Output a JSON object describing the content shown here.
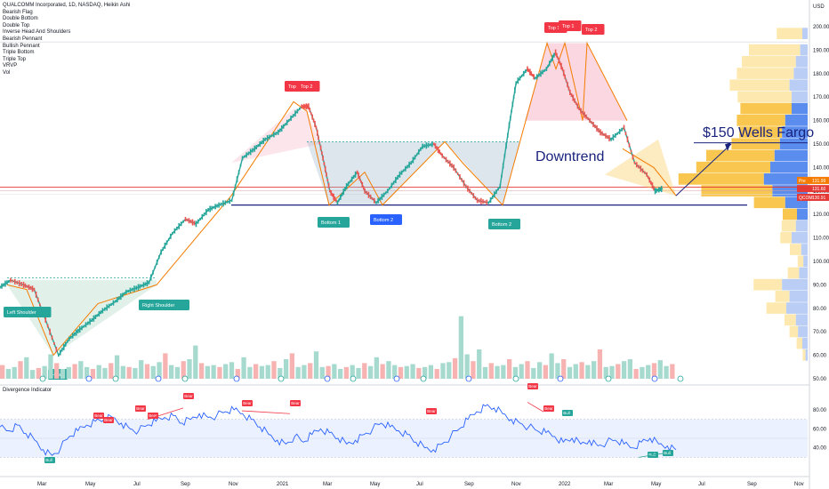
{
  "header": {
    "title": "QUALCOMM Incorporated, 1D, NASDAQ, Heikin Ashi",
    "legend_items": [
      "Bearish Flag",
      "Double Bottom",
      "Double Top",
      "Inverse Head And Shoulders",
      "Bearish Pennant",
      "Bullish Pennant",
      "Triple Bottom",
      "Triple Top",
      "VRVP",
      "Vol"
    ]
  },
  "indicator": {
    "title": "Divergence Indicator"
  },
  "price_axis": {
    "currency": "USD"
  },
  "annotations": {
    "downtrend": "Downtrend",
    "wells_fargo": "$150 Wells Fargo"
  },
  "pattern_labels": [
    {
      "text": "Left Shoulder",
      "kind": "green"
    },
    {
      "text": "Head",
      "kind": "green"
    },
    {
      "text": "Right Shoulder",
      "kind": "green"
    },
    {
      "text": "Top",
      "kind": "red"
    },
    {
      "text": "Top 2",
      "kind": "red"
    },
    {
      "text": "Bottom 1",
      "kind": "green"
    },
    {
      "text": "Bottom 2",
      "kind": "blue"
    },
    {
      "text": "Bottom 2",
      "kind": "green"
    },
    {
      "text": "Top 1",
      "kind": "red"
    },
    {
      "text": "Top 1",
      "kind": "red"
    },
    {
      "text": "Top 2",
      "kind": "red"
    }
  ],
  "price_badges": [
    {
      "label": "Pre",
      "value": "131.99",
      "color": "#f57c00"
    },
    {
      "label": "",
      "value": "131.60",
      "color": "#e53935"
    },
    {
      "label": "QCOM",
      "value": "130.91",
      "color": "#e53935"
    }
  ],
  "divergence_labels": [
    "Bull",
    "Bear",
    "Bear",
    "Bear",
    "Bear",
    "Bear",
    "Bear",
    "Bear",
    "Bear",
    "Bear",
    "Bear",
    "Bull",
    "Bull",
    "Bull"
  ],
  "chart_data": {
    "type": "line",
    "title": "QUALCOMM Incorporated, 1D, NASDAQ, Heikin Ashi",
    "y_ticks": [
      200,
      190,
      180,
      170,
      160,
      150,
      140,
      130,
      120,
      110,
      100,
      90,
      80,
      70,
      60,
      50
    ],
    "ylim": [
      48,
      203
    ],
    "x_ticks": [
      "Mar",
      "May",
      "Jul",
      "Sep",
      "Nov",
      "2021",
      "Mar",
      "May",
      "Jul",
      "Sep",
      "Nov",
      "2022",
      "Mar",
      "May",
      "Jul",
      "Sep",
      "Nov"
    ],
    "price_points": [
      [
        "2020-01-01",
        89
      ],
      [
        "2020-01-15",
        92
      ],
      [
        "2020-02-01",
        90
      ],
      [
        "2020-02-15",
        88
      ],
      [
        "2020-03-01",
        75
      ],
      [
        "2020-03-18",
        60
      ],
      [
        "2020-04-01",
        67
      ],
      [
        "2020-04-15",
        71
      ],
      [
        "2020-05-01",
        75
      ],
      [
        "2020-05-15",
        79
      ],
      [
        "2020-06-01",
        83
      ],
      [
        "2020-06-15",
        87
      ],
      [
        "2020-07-01",
        89
      ],
      [
        "2020-07-15",
        91
      ],
      [
        "2020-07-31",
        104
      ],
      [
        "2020-08-15",
        112
      ],
      [
        "2020-09-01",
        118
      ],
      [
        "2020-09-15",
        116
      ],
      [
        "2020-10-01",
        122
      ],
      [
        "2020-10-15",
        124
      ],
      [
        "2020-11-01",
        126
      ],
      [
        "2020-11-15",
        144
      ],
      [
        "2020-12-01",
        148
      ],
      [
        "2020-12-15",
        152
      ],
      [
        "2021-01-01",
        155
      ],
      [
        "2021-01-15",
        160
      ],
      [
        "2021-02-01",
        166
      ],
      [
        "2021-02-10",
        166
      ],
      [
        "2021-02-20",
        157
      ],
      [
        "2021-03-01",
        144
      ],
      [
        "2021-03-10",
        130
      ],
      [
        "2021-03-20",
        125
      ],
      [
        "2021-04-01",
        132
      ],
      [
        "2021-04-15",
        138
      ],
      [
        "2021-04-25",
        130
      ],
      [
        "2021-05-10",
        125
      ],
      [
        "2021-05-25",
        130
      ],
      [
        "2021-06-10",
        137
      ],
      [
        "2021-06-25",
        142
      ],
      [
        "2021-07-10",
        149
      ],
      [
        "2021-07-25",
        150
      ],
      [
        "2021-08-05",
        145
      ],
      [
        "2021-08-20",
        140
      ],
      [
        "2021-09-05",
        132
      ],
      [
        "2021-09-20",
        126
      ],
      [
        "2021-10-05",
        125
      ],
      [
        "2021-10-20",
        132
      ],
      [
        "2021-11-01",
        158
      ],
      [
        "2021-11-10",
        176
      ],
      [
        "2021-11-25",
        182
      ],
      [
        "2021-12-05",
        178
      ],
      [
        "2021-12-20",
        182
      ],
      [
        "2022-01-01",
        189
      ],
      [
        "2022-01-10",
        182
      ],
      [
        "2022-01-20",
        172
      ],
      [
        "2022-02-01",
        165
      ],
      [
        "2022-02-15",
        160
      ],
      [
        "2022-03-01",
        155
      ],
      [
        "2022-03-15",
        152
      ],
      [
        "2022-04-01",
        157
      ],
      [
        "2022-04-15",
        142
      ],
      [
        "2022-05-01",
        137
      ],
      [
        "2022-05-12",
        130
      ],
      [
        "2022-05-22",
        131
      ]
    ],
    "volume_bars": [
      14,
      10,
      12,
      18,
      22,
      9,
      11,
      13,
      25,
      16,
      10,
      12,
      15,
      18,
      12,
      10,
      14,
      11,
      16,
      24,
      13,
      12,
      11,
      19,
      15,
      13,
      17,
      26,
      14,
      12,
      18,
      20,
      34,
      16,
      13,
      14,
      12,
      15,
      17,
      10,
      22,
      12,
      15,
      13,
      14,
      18,
      11,
      20,
      26,
      12,
      14,
      16,
      28,
      12,
      13,
      15,
      10,
      12,
      14,
      11,
      16,
      13,
      22,
      15,
      18,
      14,
      12,
      13,
      15,
      11,
      12,
      14,
      10,
      16,
      17,
      21,
      64,
      25,
      18,
      30,
      12,
      16,
      13,
      14,
      20,
      12,
      15,
      18,
      11,
      17,
      14,
      26,
      16,
      20,
      12,
      15,
      17,
      14,
      18,
      30,
      12,
      13,
      15,
      18,
      20,
      10,
      12,
      14,
      16,
      19,
      13,
      15
    ],
    "divergence_series": [
      62,
      58,
      64,
      55,
      48,
      38,
      32,
      40,
      52,
      58,
      64,
      68,
      70,
      72,
      66,
      60,
      58,
      64,
      68,
      72,
      74,
      66,
      70,
      76,
      72,
      74,
      78,
      80,
      76,
      70,
      62,
      54,
      48,
      44,
      52,
      46,
      54,
      60,
      56,
      50,
      44,
      48,
      54,
      60,
      66,
      62,
      58,
      54,
      46,
      40,
      38,
      44,
      52,
      60,
      70,
      78,
      84,
      82,
      76,
      70,
      66,
      62,
      58,
      56,
      52,
      46,
      50,
      44,
      48,
      42,
      46,
      48,
      44,
      40,
      46,
      50,
      44,
      42,
      38
    ],
    "series": [
      {
        "name": "QCOM",
        "values": []
      }
    ]
  }
}
